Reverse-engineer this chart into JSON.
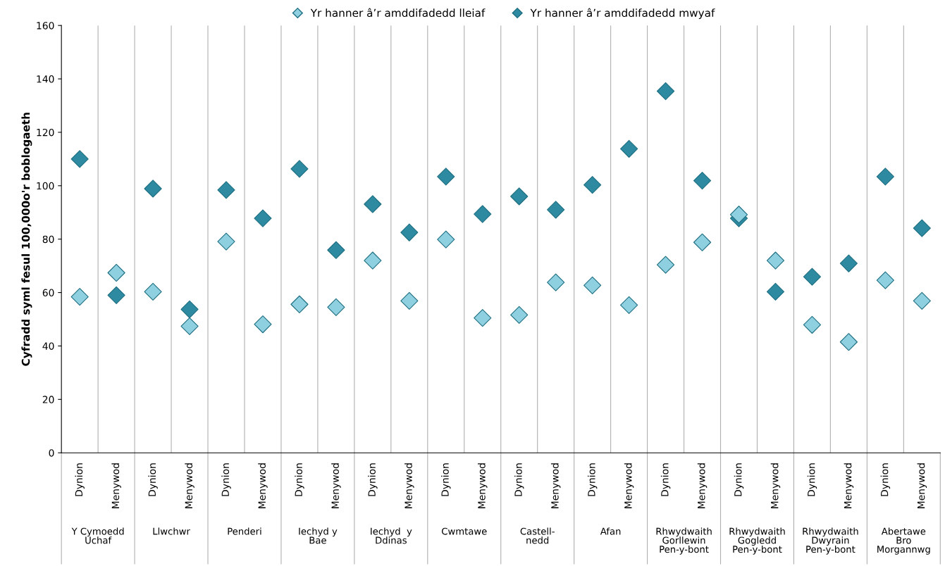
{
  "chart_data": {
    "type": "scatter",
    "ylabel": "Cyfradd syml fesul 100,000o'r boblogaeth",
    "categories": [
      "Dynion",
      "Menywod",
      "Dynion",
      "Menywod",
      "Dynion",
      "Menywod",
      "Dynion",
      "Menywod",
      "Dynion",
      "Menywod",
      "Dynion",
      "Menywod",
      "Dynion",
      "Menywod",
      "Dynion",
      "Menywod",
      "Dynion",
      "Menywod",
      "Dynion",
      "Menywod",
      "Dynion",
      "Menywod",
      "Dynion",
      "Menywod"
    ],
    "annotations": [
      "Y Cymoedd\nUchaf",
      "Llwchwr",
      "Penderi",
      "Iechyd y\nBae",
      "Iechyd  y\nDdinas",
      "Cwmtawe",
      "Castell-\nnedd",
      "Afan",
      "Rhwydwaith\nGorllewin\nPen-y-bont",
      "Rhwydwaith\nGogledd\nPen-y-bont",
      "Rhwydwaith\nDwyrain\nPen-y-bont",
      "Abertawe\nBro\nMorgannwg"
    ],
    "series": [
      {
        "name": "Yr hanner â’r amddifadedd lleiaf",
        "color": "#8ecfe0",
        "values": [
          58.4,
          67.4,
          60.3,
          47.4,
          79.1,
          48.1,
          55.6,
          54.5,
          72,
          56.9,
          79.9,
          50.5,
          51.6,
          63.8,
          62.7,
          55.3,
          70.4,
          78.8,
          89.2,
          72,
          47.9,
          41.5,
          64.6,
          56.9
        ]
      },
      {
        "name": "Yr hanner â’r amddifadedd mwyaf",
        "color": "#2e8aa0",
        "values": [
          110,
          59,
          98.9,
          53.7,
          98.4,
          87.8,
          106.3,
          75.9,
          93.1,
          82.5,
          103.4,
          89.4,
          96,
          91,
          100.3,
          113.8,
          135.4,
          101.9,
          87.8,
          60.3,
          65.9,
          70.9,
          103.4,
          84.1
        ]
      }
    ],
    "ylim": [
      0,
      160
    ],
    "yticks": [
      0,
      20,
      40,
      60,
      80,
      100,
      120,
      140,
      160
    ],
    "marker": "diamond",
    "grid": "x",
    "legend": "top"
  }
}
